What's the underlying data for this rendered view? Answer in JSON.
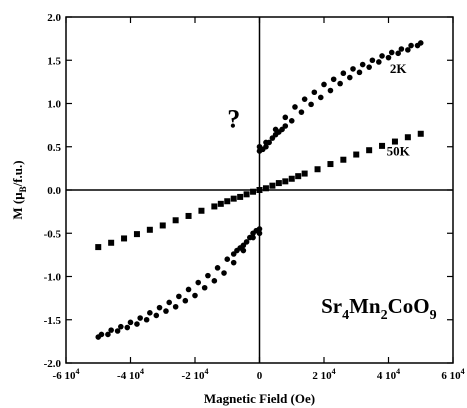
{
  "chart_data": {
    "type": "scatter",
    "title": "",
    "xlabel": "Magnetic Field (Oe)",
    "ylabel": "M (μB/f.u.)",
    "ylabel_parts": {
      "main": "M (μ",
      "sub": "B",
      "rest": "/f.u.)"
    },
    "xlim": [
      -60000,
      60000
    ],
    "ylim": [
      -2.0,
      2.0
    ],
    "x_ticks": [
      {
        "value": -60000,
        "mant": "-6 10",
        "exp": "4"
      },
      {
        "value": -40000,
        "mant": "-4 10",
        "exp": "4"
      },
      {
        "value": -20000,
        "mant": "-2 10",
        "exp": "4"
      },
      {
        "value": 0,
        "mant": "0",
        "exp": ""
      },
      {
        "value": 20000,
        "mant": "2 10",
        "exp": "4"
      },
      {
        "value": 40000,
        "mant": "4 10",
        "exp": "4"
      },
      {
        "value": 60000,
        "mant": "6 10",
        "exp": "4"
      }
    ],
    "y_ticks": [
      {
        "value": 2.0,
        "label": "2.0"
      },
      {
        "value": 1.5,
        "label": "1.5"
      },
      {
        "value": 1.0,
        "label": "1.0"
      },
      {
        "value": 0.5,
        "label": "0.5"
      },
      {
        "value": 0.0,
        "label": "0.0"
      },
      {
        "value": -0.5,
        "label": "-0.5"
      },
      {
        "value": -1.0,
        "label": "-1.0"
      },
      {
        "value": -1.5,
        "label": "-1.5"
      },
      {
        "value": -2.0,
        "label": "-2.0"
      }
    ],
    "grid": false,
    "series": [
      {
        "name": "2K",
        "marker": "circle",
        "branches": [
          {
            "x": [
              50000,
              47000,
              44000,
              41000,
              38000,
              35000,
              32000,
              29000,
              26000,
              23000,
              20000,
              17000,
              14000,
              11000,
              8000,
              5000,
              2000,
              0
            ],
            "y": [
              1.7,
              1.67,
              1.63,
              1.59,
              1.55,
              1.5,
              1.45,
              1.4,
              1.35,
              1.28,
              1.22,
              1.13,
              1.05,
              0.96,
              0.84,
              0.7,
              0.55,
              0.5
            ]
          },
          {
            "x": [
              0,
              1000,
              2000,
              3000,
              4000,
              5000,
              6000,
              7000,
              8000,
              10000,
              13000,
              16000,
              19000,
              22000,
              25000,
              28000,
              31000,
              34000,
              37000,
              40000,
              43000,
              46000,
              49000
            ],
            "y": [
              0.45,
              0.47,
              0.5,
              0.55,
              0.6,
              0.64,
              0.67,
              0.7,
              0.74,
              0.8,
              0.9,
              0.99,
              1.07,
              1.15,
              1.23,
              1.3,
              1.36,
              1.42,
              1.48,
              1.53,
              1.58,
              1.62,
              1.67
            ]
          },
          {
            "x": [
              -50000,
              -47000,
              -44000,
              -41000,
              -38000,
              -35000,
              -32000,
              -29000,
              -26000,
              -23000,
              -20000,
              -17000,
              -14000,
              -11000,
              -8000,
              -5000,
              -2000,
              0
            ],
            "y": [
              -1.7,
              -1.67,
              -1.63,
              -1.59,
              -1.55,
              -1.5,
              -1.45,
              -1.4,
              -1.35,
              -1.28,
              -1.22,
              -1.13,
              -1.05,
              -0.96,
              -0.84,
              -0.7,
              -0.55,
              -0.5
            ]
          },
          {
            "x": [
              0,
              -1000,
              -2000,
              -3000,
              -4000,
              -5000,
              -6000,
              -7000,
              -8000,
              -10000,
              -13000,
              -16000,
              -19000,
              -22000,
              -25000,
              -28000,
              -31000,
              -34000,
              -37000,
              -40000,
              -43000,
              -46000,
              -49000
            ],
            "y": [
              -0.45,
              -0.47,
              -0.5,
              -0.55,
              -0.6,
              -0.64,
              -0.67,
              -0.7,
              -0.74,
              -0.8,
              -0.9,
              -0.99,
              -1.07,
              -1.15,
              -1.23,
              -1.3,
              -1.36,
              -1.42,
              -1.48,
              -1.53,
              -1.58,
              -1.62,
              -1.67
            ]
          }
        ]
      },
      {
        "name": "50K",
        "marker": "square",
        "branches": [
          {
            "x": [
              50000,
              46000,
              42000,
              38000,
              34000,
              30000,
              26000,
              22000,
              18000,
              14000,
              12000,
              10000,
              8000,
              6000,
              4000,
              2000,
              0,
              -2000,
              -4000,
              -6000,
              -8000,
              -10000,
              -12000,
              -14000,
              -18000,
              -22000,
              -26000,
              -30000,
              -34000,
              -38000,
              -42000,
              -46000,
              -50000
            ],
            "y": [
              0.65,
              0.61,
              0.56,
              0.51,
              0.46,
              0.41,
              0.35,
              0.3,
              0.24,
              0.19,
              0.16,
              0.13,
              0.1,
              0.08,
              0.05,
              0.02,
              0.0,
              -0.02,
              -0.05,
              -0.08,
              -0.1,
              -0.13,
              -0.16,
              -0.19,
              -0.24,
              -0.3,
              -0.35,
              -0.41,
              -0.46,
              -0.51,
              -0.56,
              -0.61,
              -0.66
            ]
          }
        ]
      }
    ],
    "annotations": [
      {
        "id": "label-2k",
        "text": "2K",
        "x": 43000,
        "y": 1.35
      },
      {
        "id": "label-50k",
        "text": "50K",
        "x": 43000,
        "y": 0.4
      },
      {
        "id": "question-mark",
        "text": "?",
        "x": -8000,
        "y": 0.72
      }
    ],
    "formula": {
      "parts": [
        "Sr",
        "4",
        "Mn",
        "2",
        "CoO",
        "9"
      ],
      "x": 37000,
      "y": -1.42
    }
  }
}
